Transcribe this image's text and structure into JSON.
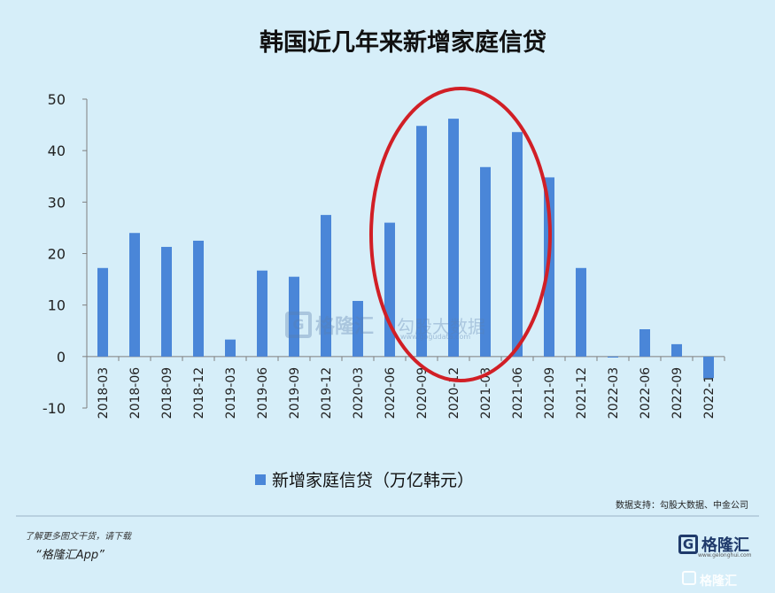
{
  "chart_data": {
    "type": "bar",
    "title": "韩国近几年来新增家庭信贷",
    "categories": [
      "2018-03",
      "2018-06",
      "2018-09",
      "2018-12",
      "2019-03",
      "2019-06",
      "2019-09",
      "2019-12",
      "2020-03",
      "2020-06",
      "2020-09",
      "2020-12",
      "2021-03",
      "2021-06",
      "2021-09",
      "2021-12",
      "2022-03",
      "2022-06",
      "2022-09",
      "2022-12"
    ],
    "series": [
      {
        "name": "新增家庭信贷（万亿韩元）",
        "values": [
          17.2,
          24.0,
          21.3,
          22.5,
          3.3,
          16.7,
          15.5,
          27.5,
          10.8,
          26.0,
          44.8,
          46.2,
          36.8,
          43.6,
          34.8,
          17.2,
          -0.2,
          5.3,
          2.4,
          -4.2
        ]
      }
    ],
    "yticks": [
      50,
      40,
      30,
      20,
      10,
      0,
      -10
    ],
    "ylim": [
      -10,
      50
    ],
    "legend_position": "bottom",
    "grid": false,
    "bar_color": "#4a86d8",
    "highlight_color": "#d11f26"
  },
  "source_label": "数据支持：勾股大数据、中金公司",
  "footer": {
    "note": "了解更多图文干货，请下载",
    "app": "“格隆汇App”"
  },
  "brand": {
    "letter": "G",
    "name": "格隆汇",
    "url": "www.gelonghui.com"
  },
  "watermark": {
    "letter": "G",
    "name": "格隆汇",
    "sub": "勾股大数据",
    "url": "www.gogudata.com",
    "corner": "格隆汇"
  }
}
